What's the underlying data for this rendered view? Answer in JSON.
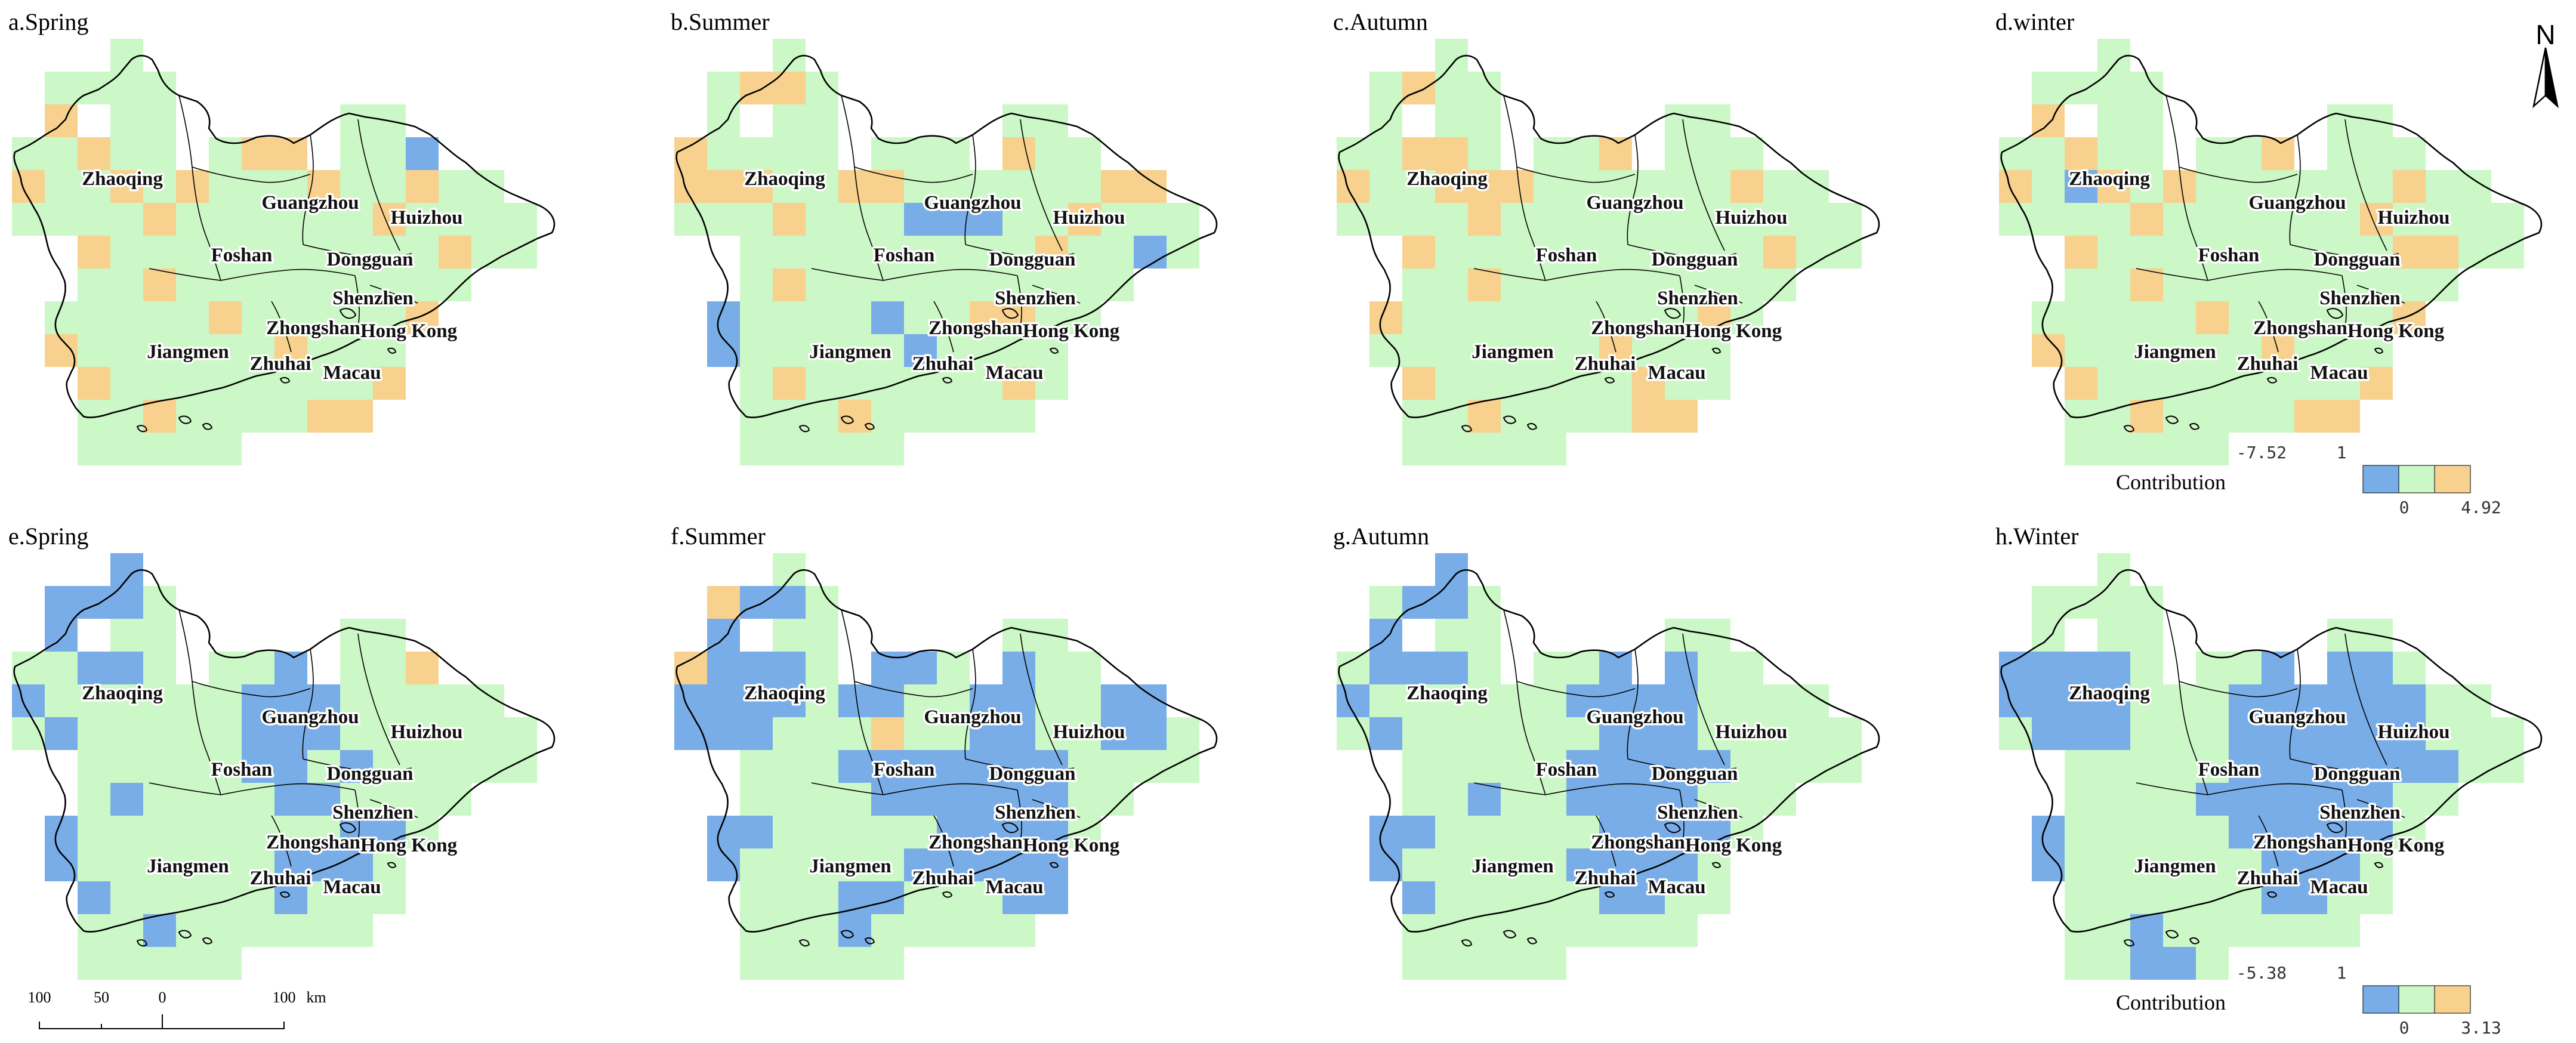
{
  "colors": {
    "negative": "#79ade8",
    "neutral": "#ccf7c6",
    "positive": "#f8d18e",
    "white": "#ffffff"
  },
  "panels": [
    {
      "id": "a",
      "title": "a.Spring"
    },
    {
      "id": "b",
      "title": "b.Summer"
    },
    {
      "id": "c",
      "title": "c.Autumn"
    },
    {
      "id": "d",
      "title": "d.winter"
    },
    {
      "id": "e",
      "title": "e.Spring"
    },
    {
      "id": "f",
      "title": "f.Summer"
    },
    {
      "id": "g",
      "title": "g.Autumn"
    },
    {
      "id": "h",
      "title": "h.Winter"
    }
  ],
  "cities": [
    {
      "name": "Zhaoqing"
    },
    {
      "name": "Guangzhou"
    },
    {
      "name": "Huizhou"
    },
    {
      "name": "Foshan"
    },
    {
      "name": "Dongguan"
    },
    {
      "name": "Shenzhen"
    },
    {
      "name": "Zhongshan"
    },
    {
      "name": "Hong Kong"
    },
    {
      "name": "Jiangmen"
    },
    {
      "name": "Zhuhai"
    },
    {
      "name": "Macau"
    }
  ],
  "legends": [
    {
      "label": "Contribution",
      "min": "-7.52",
      "mid_top": "1",
      "mid_bottom": "0",
      "max": "4.92"
    },
    {
      "label": "Contribution",
      "min": "-5.38",
      "mid_top": "1",
      "mid_bottom": "0",
      "max": "3.13"
    }
  ],
  "scale_bar": {
    "ticks": [
      "100",
      "50",
      "0",
      "100"
    ],
    "unit": "km"
  },
  "north_arrow": {
    "label": "N"
  }
}
